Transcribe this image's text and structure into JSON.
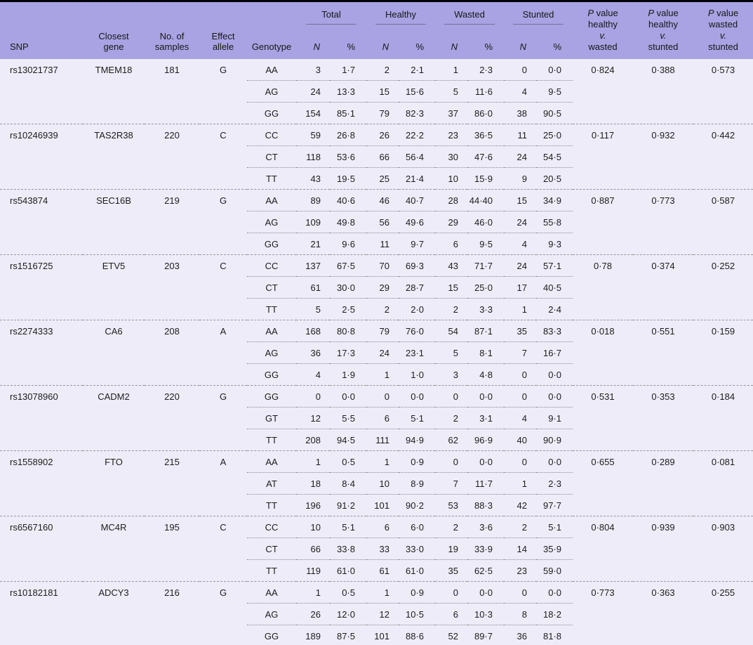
{
  "table": {
    "header": {
      "snp": "SNP",
      "closest_gene": "Closest gene",
      "no_of_samples": "No. of samples",
      "effect_allele": "Effect allele",
      "genotype": "Genotype",
      "groups": [
        "Total",
        "Healthy",
        "Wasted",
        "Stunted"
      ],
      "n_label": "N",
      "pct_label": "%",
      "p_value_label": {
        "p": "P",
        "value": "value",
        "vs": "v."
      },
      "p_headers": [
        {
          "top": "healthy",
          "bottom": "wasted"
        },
        {
          "top": "healthy",
          "bottom": "stunted"
        },
        {
          "top": "wasted",
          "bottom": "stunted"
        }
      ]
    },
    "rows": [
      {
        "snp": "rs13021737",
        "gene": "TMEM18",
        "samples": "181",
        "allele": "G",
        "genotypes": [
          {
            "gt": "AA",
            "total_n": "3",
            "total_pct": "1·7",
            "healthy_n": "2",
            "healthy_pct": "2·1",
            "wasted_n": "1",
            "wasted_pct": "2·3",
            "stunted_n": "0",
            "stunted_pct": "0·0"
          },
          {
            "gt": "AG",
            "total_n": "24",
            "total_pct": "13·3",
            "healthy_n": "15",
            "healthy_pct": "15·6",
            "wasted_n": "5",
            "wasted_pct": "11·6",
            "stunted_n": "4",
            "stunted_pct": "9·5"
          },
          {
            "gt": "GG",
            "total_n": "154",
            "total_pct": "85·1",
            "healthy_n": "79",
            "healthy_pct": "82·3",
            "wasted_n": "37",
            "wasted_pct": "86·0",
            "stunted_n": "38",
            "stunted_pct": "90·5"
          }
        ],
        "p_hw": "0·824",
        "p_hs": "0·388",
        "p_ws": "0·573"
      },
      {
        "snp": "rs10246939",
        "gene": "TAS2R38",
        "samples": "220",
        "allele": "C",
        "genotypes": [
          {
            "gt": "CC",
            "total_n": "59",
            "total_pct": "26·8",
            "healthy_n": "26",
            "healthy_pct": "22·2",
            "wasted_n": "23",
            "wasted_pct": "36·5",
            "stunted_n": "11",
            "stunted_pct": "25·0"
          },
          {
            "gt": "CT",
            "total_n": "118",
            "total_pct": "53·6",
            "healthy_n": "66",
            "healthy_pct": "56·4",
            "wasted_n": "30",
            "wasted_pct": "47·6",
            "stunted_n": "24",
            "stunted_pct": "54·5"
          },
          {
            "gt": "TT",
            "total_n": "43",
            "total_pct": "19·5",
            "healthy_n": "25",
            "healthy_pct": "21·4",
            "wasted_n": "10",
            "wasted_pct": "15·9",
            "stunted_n": "9",
            "stunted_pct": "20·5"
          }
        ],
        "p_hw": "0·117",
        "p_hs": "0·932",
        "p_ws": "0·442"
      },
      {
        "snp": "rs543874",
        "gene": "SEC16B",
        "samples": "219",
        "allele": "G",
        "genotypes": [
          {
            "gt": "AA",
            "total_n": "89",
            "total_pct": "40·6",
            "healthy_n": "46",
            "healthy_pct": "40·7",
            "wasted_n": "28",
            "wasted_pct": "44·40",
            "stunted_n": "15",
            "stunted_pct": "34·9"
          },
          {
            "gt": "AG",
            "total_n": "109",
            "total_pct": "49·8",
            "healthy_n": "56",
            "healthy_pct": "49·6",
            "wasted_n": "29",
            "wasted_pct": "46·0",
            "stunted_n": "24",
            "stunted_pct": "55·8"
          },
          {
            "gt": "GG",
            "total_n": "21",
            "total_pct": "9·6",
            "healthy_n": "11",
            "healthy_pct": "9·7",
            "wasted_n": "6",
            "wasted_pct": "9·5",
            "stunted_n": "4",
            "stunted_pct": "9·3"
          }
        ],
        "p_hw": "0·887",
        "p_hs": "0·773",
        "p_ws": "0·587"
      },
      {
        "snp": "rs1516725",
        "gene": "ETV5",
        "samples": "203",
        "allele": "C",
        "genotypes": [
          {
            "gt": "CC",
            "total_n": "137",
            "total_pct": "67·5",
            "healthy_n": "70",
            "healthy_pct": "69·3",
            "wasted_n": "43",
            "wasted_pct": "71·7",
            "stunted_n": "24",
            "stunted_pct": "57·1"
          },
          {
            "gt": "CT",
            "total_n": "61",
            "total_pct": "30·0",
            "healthy_n": "29",
            "healthy_pct": "28·7",
            "wasted_n": "15",
            "wasted_pct": "25·0",
            "stunted_n": "17",
            "stunted_pct": "40·5"
          },
          {
            "gt": "TT",
            "total_n": "5",
            "total_pct": "2·5",
            "healthy_n": "2",
            "healthy_pct": "2·0",
            "wasted_n": "2",
            "wasted_pct": "3·3",
            "stunted_n": "1",
            "stunted_pct": "2·4"
          }
        ],
        "p_hw": "0·78",
        "p_hs": "0·374",
        "p_ws": "0·252"
      },
      {
        "snp": "rs2274333",
        "gene": "CA6",
        "samples": "208",
        "allele": "A",
        "genotypes": [
          {
            "gt": "AA",
            "total_n": "168",
            "total_pct": "80·8",
            "healthy_n": "79",
            "healthy_pct": "76·0",
            "wasted_n": "54",
            "wasted_pct": "87·1",
            "stunted_n": "35",
            "stunted_pct": "83·3"
          },
          {
            "gt": "AG",
            "total_n": "36",
            "total_pct": "17·3",
            "healthy_n": "24",
            "healthy_pct": "23·1",
            "wasted_n": "5",
            "wasted_pct": "8·1",
            "stunted_n": "7",
            "stunted_pct": "16·7"
          },
          {
            "gt": "GG",
            "total_n": "4",
            "total_pct": "1·9",
            "healthy_n": "1",
            "healthy_pct": "1·0",
            "wasted_n": "3",
            "wasted_pct": "4·8",
            "stunted_n": "0",
            "stunted_pct": "0·0"
          }
        ],
        "p_hw": "0·018",
        "p_hs": "0·551",
        "p_ws": "0·159"
      },
      {
        "snp": "rs13078960",
        "gene": "CADM2",
        "samples": "220",
        "allele": "G",
        "genotypes": [
          {
            "gt": "GG",
            "total_n": "0",
            "total_pct": "0·0",
            "healthy_n": "0",
            "healthy_pct": "0·0",
            "wasted_n": "0",
            "wasted_pct": "0·0",
            "stunted_n": "0",
            "stunted_pct": "0·0"
          },
          {
            "gt": "GT",
            "total_n": "12",
            "total_pct": "5·5",
            "healthy_n": "6",
            "healthy_pct": "5·1",
            "wasted_n": "2",
            "wasted_pct": "3·1",
            "stunted_n": "4",
            "stunted_pct": "9·1"
          },
          {
            "gt": "TT",
            "total_n": "208",
            "total_pct": "94·5",
            "healthy_n": "111",
            "healthy_pct": "94·9",
            "wasted_n": "62",
            "wasted_pct": "96·9",
            "stunted_n": "40",
            "stunted_pct": "90·9"
          }
        ],
        "p_hw": "0·531",
        "p_hs": "0·353",
        "p_ws": "0·184"
      },
      {
        "snp": "rs1558902",
        "gene": "FTO",
        "samples": "215",
        "allele": "A",
        "genotypes": [
          {
            "gt": "AA",
            "total_n": "1",
            "total_pct": "0·5",
            "healthy_n": "1",
            "healthy_pct": "0·9",
            "wasted_n": "0",
            "wasted_pct": "0·0",
            "stunted_n": "0",
            "stunted_pct": "0·0"
          },
          {
            "gt": "AT",
            "total_n": "18",
            "total_pct": "8·4",
            "healthy_n": "10",
            "healthy_pct": "8·9",
            "wasted_n": "7",
            "wasted_pct": "11·7",
            "stunted_n": "1",
            "stunted_pct": "2·3"
          },
          {
            "gt": "TT",
            "total_n": "196",
            "total_pct": "91·2",
            "healthy_n": "101",
            "healthy_pct": "90·2",
            "wasted_n": "53",
            "wasted_pct": "88·3",
            "stunted_n": "42",
            "stunted_pct": "97·7"
          }
        ],
        "p_hw": "0·655",
        "p_hs": "0·289",
        "p_ws": "0·081"
      },
      {
        "snp": "rs6567160",
        "gene": "MC4R",
        "samples": "195",
        "allele": "C",
        "genotypes": [
          {
            "gt": "CC",
            "total_n": "10",
            "total_pct": "5·1",
            "healthy_n": "6",
            "healthy_pct": "6·0",
            "wasted_n": "2",
            "wasted_pct": "3·6",
            "stunted_n": "2",
            "stunted_pct": "5·1"
          },
          {
            "gt": "CT",
            "total_n": "66",
            "total_pct": "33·8",
            "healthy_n": "33",
            "healthy_pct": "33·0",
            "wasted_n": "19",
            "wasted_pct": "33·9",
            "stunted_n": "14",
            "stunted_pct": "35·9"
          },
          {
            "gt": "TT",
            "total_n": "119",
            "total_pct": "61·0",
            "healthy_n": "61",
            "healthy_pct": "61·0",
            "wasted_n": "35",
            "wasted_pct": "62·5",
            "stunted_n": "23",
            "stunted_pct": "59·0"
          }
        ],
        "p_hw": "0·804",
        "p_hs": "0·939",
        "p_ws": "0·903"
      },
      {
        "snp": "rs10182181",
        "gene": "ADCY3",
        "samples": "216",
        "allele": "G",
        "genotypes": [
          {
            "gt": "AA",
            "total_n": "1",
            "total_pct": "0·5",
            "healthy_n": "1",
            "healthy_pct": "0·9",
            "wasted_n": "0",
            "wasted_pct": "0·0",
            "stunted_n": "0",
            "stunted_pct": "0·0"
          },
          {
            "gt": "AG",
            "total_n": "26",
            "total_pct": "12·0",
            "healthy_n": "12",
            "healthy_pct": "10·5",
            "wasted_n": "6",
            "wasted_pct": "10·3",
            "stunted_n": "8",
            "stunted_pct": "18·2"
          },
          {
            "gt": "GG",
            "total_n": "189",
            "total_pct": "87·5",
            "healthy_n": "101",
            "healthy_pct": "88·6",
            "wasted_n": "52",
            "wasted_pct": "89·7",
            "stunted_n": "36",
            "stunted_pct": "81·8"
          }
        ],
        "p_hw": "0·773",
        "p_hs": "0·363",
        "p_ws": "0·255"
      }
    ]
  }
}
